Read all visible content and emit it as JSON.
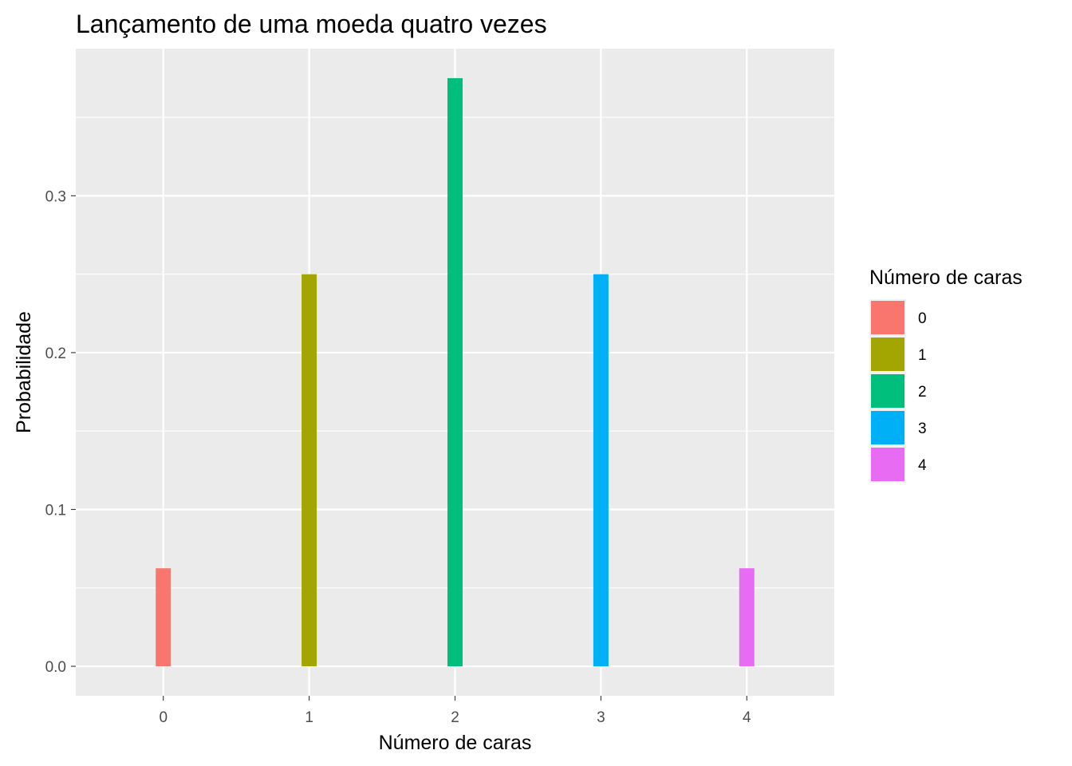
{
  "chart_data": {
    "type": "bar",
    "title": "Lançamento de uma moeda quatro vezes",
    "xlabel": "Número de caras",
    "ylabel": "Probabilidade",
    "categories": [
      "0",
      "1",
      "2",
      "3",
      "4"
    ],
    "values": [
      0.0625,
      0.25,
      0.375,
      0.25,
      0.0625
    ],
    "colors": [
      "#F8766D",
      "#A3A500",
      "#00BF7D",
      "#00B0F6",
      "#E76BF3"
    ],
    "y_ticks": [
      "0.0",
      "0.1",
      "0.2",
      "0.3"
    ],
    "ylim": [
      -0.0188,
      0.3938
    ],
    "grid": true,
    "panel_background": "#EBEBEB",
    "legend": {
      "title": "Número de caras",
      "placement": "right",
      "items": [
        "0",
        "1",
        "2",
        "3",
        "4"
      ]
    }
  }
}
